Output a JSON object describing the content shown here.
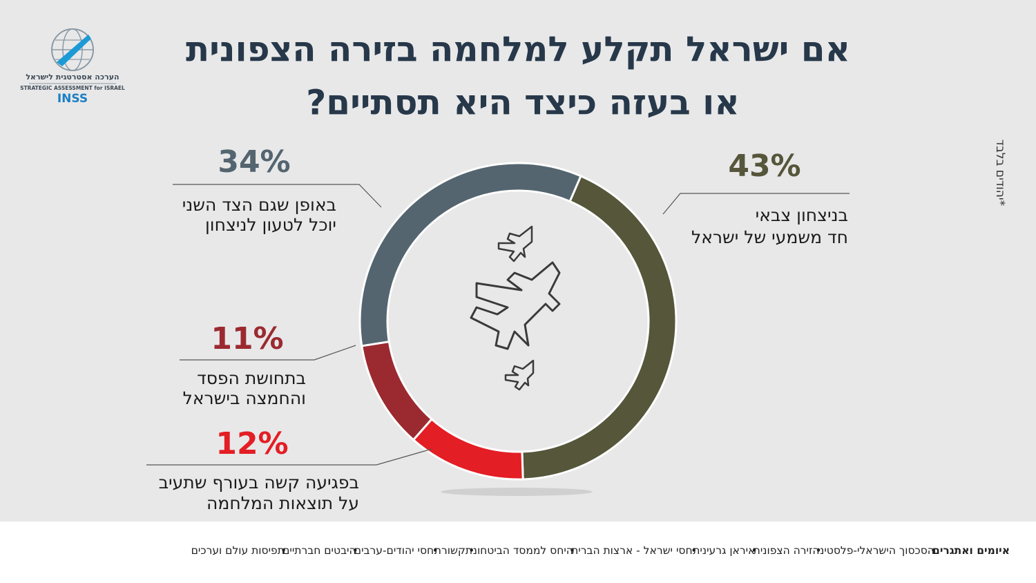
{
  "logo": {
    "hebrew": "הערכה אסטרטגית לישראל",
    "english": "STRATEGIC ASSESSMENT for ISRAEL",
    "brand": "INSS"
  },
  "note": "*יהודים בלבד",
  "chart_data": {
    "type": "pie",
    "donut": true,
    "title": [
      "אם ישראל תקלע למלחמה בזירה הצפונית",
      "או בעזה כיצד היא תסתיים?"
    ],
    "categories": [
      [
        "בניצחון צבאי",
        "חד משמעי של ישראל"
      ],
      [
        "בפגיעה קשה בעורף שתעיב",
        "על תוצאות המלחמה"
      ],
      [
        "בתחושת הפסד",
        "והחמצה בישראל"
      ],
      [
        "באופן שגם הצד השני",
        "יוכל לטעון לניצחון"
      ]
    ],
    "values": [
      43,
      12,
      11,
      34
    ],
    "value_labels": [
      "43%",
      "12%",
      "11%",
      "34%"
    ],
    "colors": [
      "#55563a",
      "#e31e24",
      "#9b2a30",
      "#546570"
    ]
  },
  "footer": {
    "title": "איומים ואתגרים",
    "separator": "•",
    "items": [
      "הסכסוך הישראלי-פלסטיני",
      "הזירה הצפונית",
      "איראן גרעינית",
      "יחסי ישראל - ארצות הברית",
      "היחס לממסד הביטחוני",
      "תקשורת",
      "יחסי יהודים-ערבים",
      "היבטים חברתיים",
      "תפיסות עולם וערכים"
    ]
  }
}
